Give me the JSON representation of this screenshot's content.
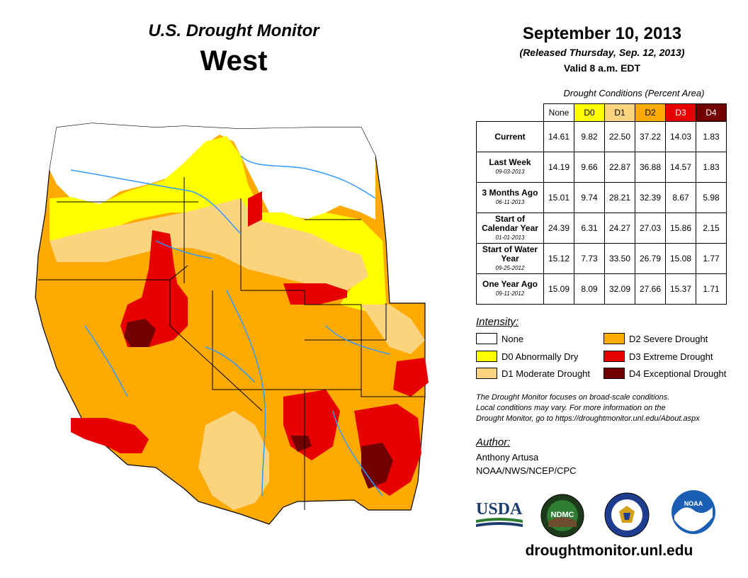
{
  "header": {
    "title": "U.S. Drought Monitor",
    "region": "West",
    "date": "September 10, 2013",
    "released": "(Released Thursday, Sep. 12, 2013)",
    "valid": "Valid 8 a.m. EDT"
  },
  "conditions_table": {
    "caption": "Drought Conditions (Percent Area)",
    "columns": [
      "None",
      "D0",
      "D1",
      "D2",
      "D3",
      "D4"
    ],
    "column_colors": [
      "#ffffff",
      "#ffff00",
      "#fcd37f",
      "#ffaa00",
      "#e60000",
      "#730000"
    ],
    "rows": [
      {
        "label": "Current",
        "date": "",
        "values": [
          "14.61",
          "9.82",
          "22.50",
          "37.22",
          "14.03",
          "1.83"
        ]
      },
      {
        "label": "Last Week",
        "date": "09-03-2013",
        "values": [
          "14.19",
          "9.66",
          "22.87",
          "36.88",
          "14.57",
          "1.83"
        ]
      },
      {
        "label": "3 Months Ago",
        "date": "06-11-2013",
        "values": [
          "15.01",
          "9.74",
          "28.21",
          "32.39",
          "8.67",
          "5.98"
        ]
      },
      {
        "label": "Start of Calendar Year",
        "date": "01-01-2013",
        "values": [
          "24.39",
          "6.31",
          "24.27",
          "27.03",
          "15.86",
          "2.15"
        ]
      },
      {
        "label": "Start of Water Year",
        "date": "09-25-2012",
        "values": [
          "15.12",
          "7.73",
          "33.50",
          "26.79",
          "15.08",
          "1.77"
        ]
      },
      {
        "label": "One Year Ago",
        "date": "09-11-2012",
        "values": [
          "15.09",
          "8.09",
          "32.09",
          "27.66",
          "15.37",
          "1.71"
        ]
      }
    ]
  },
  "legend": {
    "title": "Intensity:",
    "items": [
      {
        "label": "None",
        "color": "#ffffff"
      },
      {
        "label": "D0 Abnormally Dry",
        "color": "#ffff00"
      },
      {
        "label": "D1 Moderate Drought",
        "color": "#fcd37f"
      },
      {
        "label": "D2 Severe Drought",
        "color": "#ffaa00"
      },
      {
        "label": "D3 Extreme Drought",
        "color": "#e60000"
      },
      {
        "label": "D4 Exceptional Drought",
        "color": "#730000"
      }
    ]
  },
  "note": {
    "line1": "The Drought Monitor focuses on broad-scale conditions.",
    "line2": "Local conditions may vary. For more information on the",
    "line3": "Drought Monitor, go to https://droughtmonitor.unl.edu/About.aspx"
  },
  "author": {
    "title": "Author:",
    "name": "Anthony Artusa",
    "org": "NOAA/NWS/NCEP/CPC"
  },
  "logos": {
    "usda": "USDA",
    "ndmc": "NDMC",
    "noaa": "NOAA"
  },
  "website": "droughtmonitor.unl.edu",
  "colors": {
    "river": "#3399ff",
    "border": "#000000",
    "county": "#888888"
  }
}
